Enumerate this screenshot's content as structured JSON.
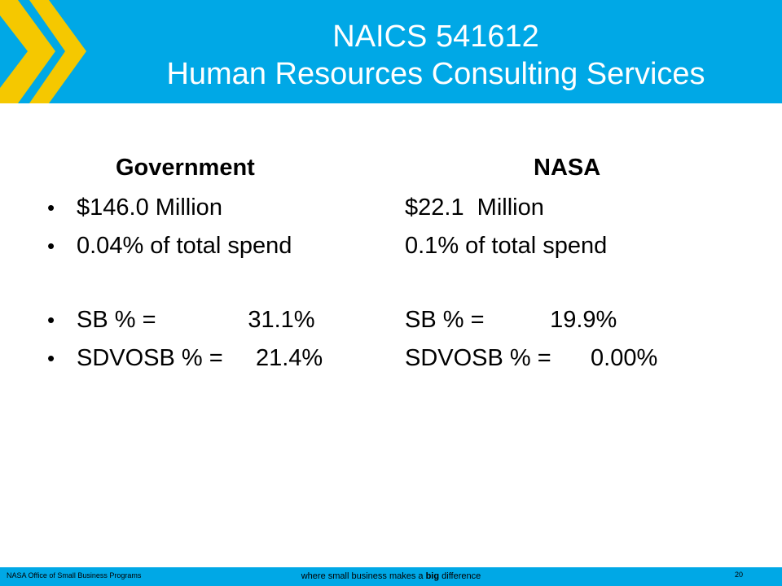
{
  "header": {
    "title_line1": "NAICS 541612",
    "title_line2": "Human Resources Consulting Services"
  },
  "columns": {
    "government": {
      "heading": "Government",
      "amount": "$146.0 Million",
      "share": "0.04% of total spend",
      "sb": "SB % =              31.1%",
      "sdvosb": "SDVOSB % =     21.4%"
    },
    "nasa": {
      "heading": "NASA",
      "amount": "$22.1  Million",
      "share": "0.1% of total spend",
      "sb": "SB % =          19.9%",
      "sdvosb": "SDVOSB % =      0.00%"
    }
  },
  "bullet_glyph": "•",
  "footer": {
    "org": "NASA Office of Small Business Programs",
    "tagline_pre": "where small business makes a ",
    "tagline_big": "big",
    "tagline_post": " difference",
    "page_number": "20"
  },
  "colors": {
    "brand_blue": "#00a8e6",
    "chevron_yellow": "#f5c800"
  }
}
